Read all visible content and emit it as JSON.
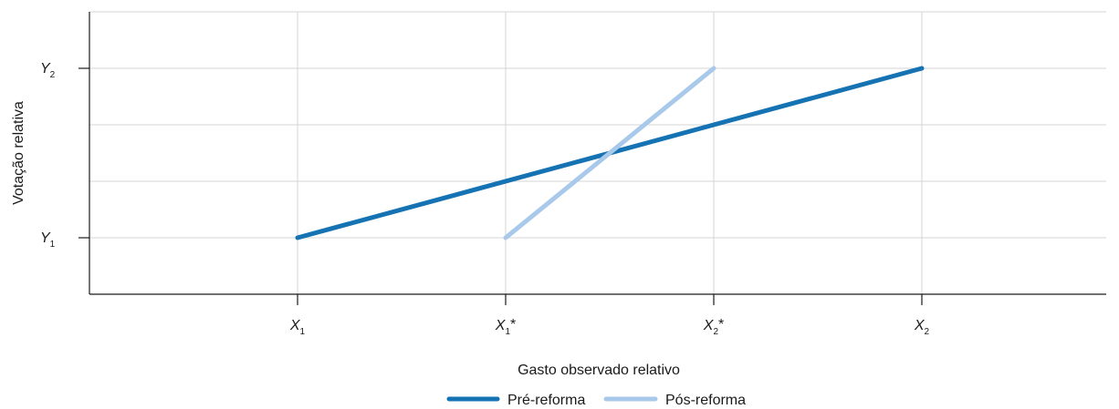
{
  "chart_data": {
    "type": "line",
    "title": "",
    "xlabel": "Gasto observado relativo",
    "ylabel": "Votação relativa",
    "x_ticks": [
      {
        "value": 1,
        "base": "X",
        "sub": "1",
        "suffix": ""
      },
      {
        "value": 2,
        "base": "X",
        "sub": "1",
        "suffix": "*"
      },
      {
        "value": 3,
        "base": "X",
        "sub": "2",
        "suffix": "*"
      },
      {
        "value": 4,
        "base": "X",
        "sub": "2",
        "suffix": ""
      }
    ],
    "y_ticks": [
      {
        "value": 1,
        "base": "Y",
        "sub": "1"
      },
      {
        "value": 4,
        "base": "Y",
        "sub": "2"
      }
    ],
    "xlim": [
      0,
      5
    ],
    "ylim": [
      0,
      5
    ],
    "grid": true,
    "legend_position": "bottom-center",
    "series": [
      {
        "name": "Pré-reforma",
        "color": "#1673b3",
        "points": [
          [
            1,
            1
          ],
          [
            4,
            4
          ]
        ]
      },
      {
        "name": "Pós-reforma",
        "color": "#a9c9ea",
        "points": [
          [
            2,
            1
          ],
          [
            3,
            4
          ]
        ]
      }
    ]
  }
}
